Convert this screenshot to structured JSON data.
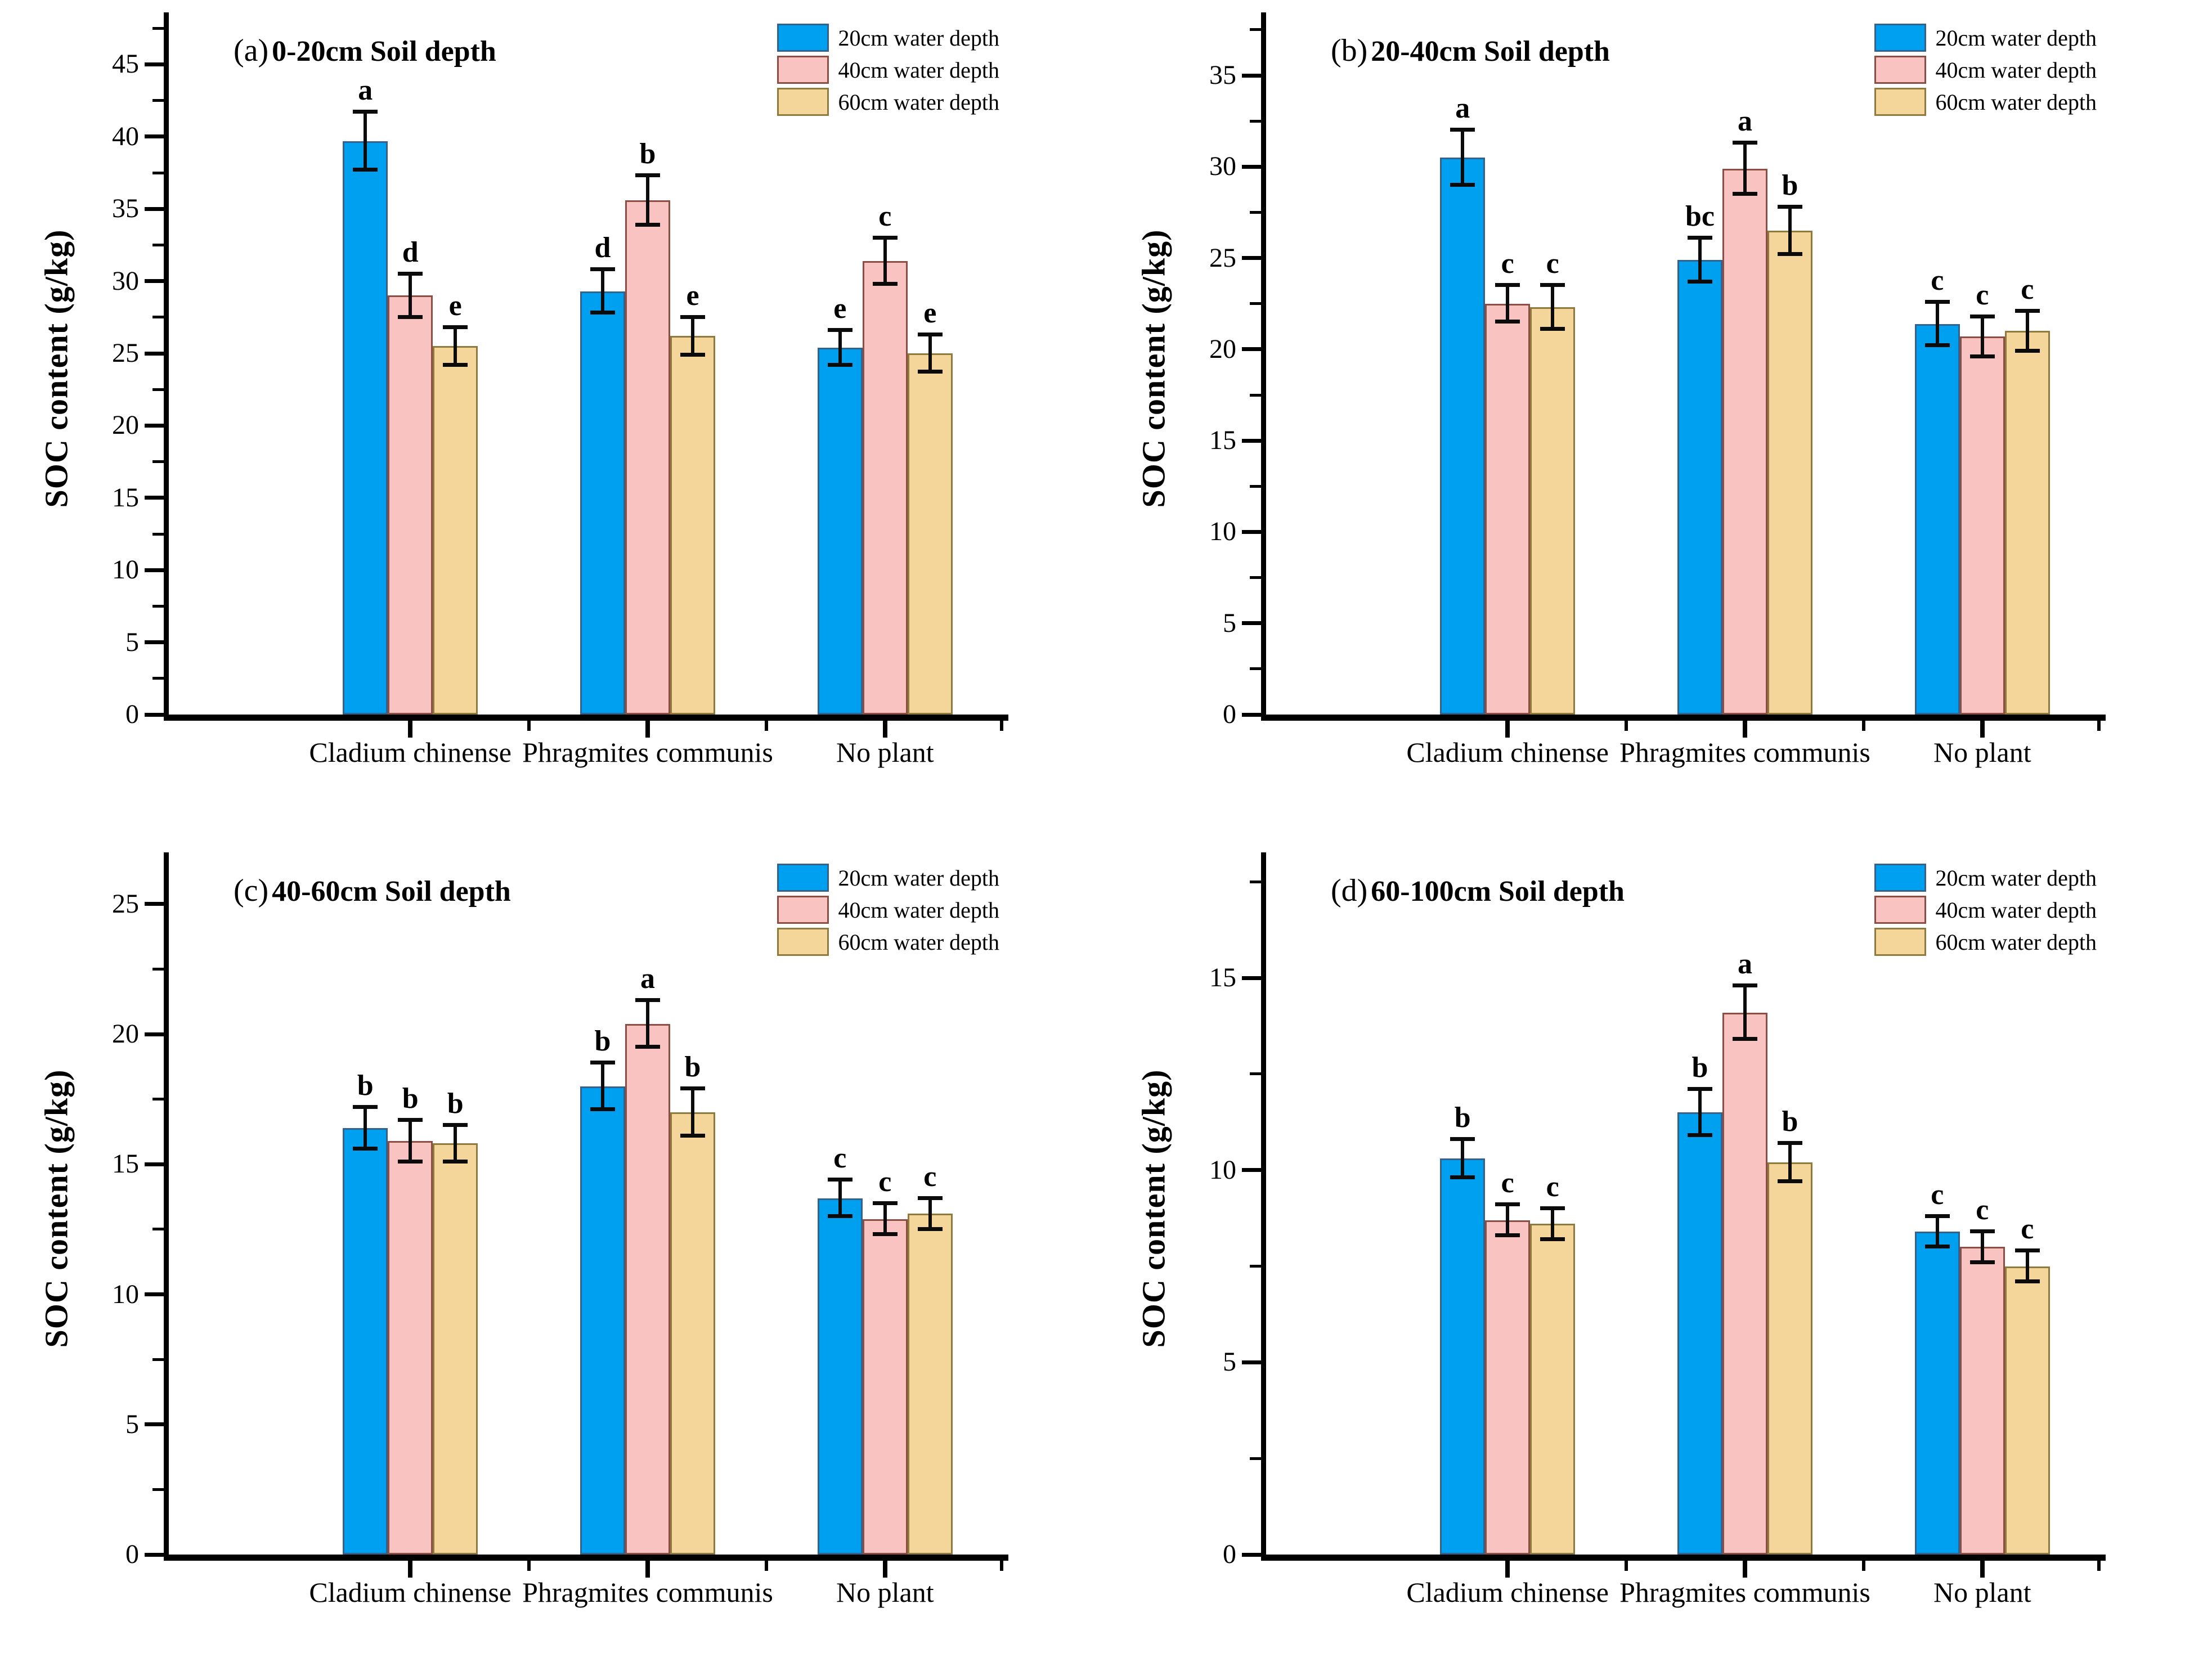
{
  "figure": {
    "description": "Four-panel grouped bar chart of soil organic carbon content by plant type, water depth and soil depth",
    "colors": {
      "series_20cm_fill": "#00A0F0",
      "series_20cm_border": "#33638C",
      "series_40cm_fill": "#F9C3C2",
      "series_40cm_border": "#8C4D45",
      "series_60cm_fill": "#F5D69A",
      "series_60cm_border": "#8F7A3E",
      "axis": "#000000"
    }
  },
  "chart_data": [
    {
      "id": "a",
      "type": "bar",
      "tag": "(a)",
      "title": "0-20cm Soil depth",
      "ylabel": "SOC content (g/kg)",
      "categories": [
        "Cladium chinense",
        "Phragmites communis",
        "No plant"
      ],
      "yticks": [
        0,
        5,
        10,
        15,
        20,
        25,
        30,
        35,
        40,
        45
      ],
      "ylim": [
        0,
        47.9
      ],
      "legend_position": "top-right",
      "grid": false,
      "series": [
        {
          "name": "20cm water depth",
          "fill": "#00A0F0",
          "border": "#33638C",
          "values": [
            39.7,
            29.3,
            25.4
          ],
          "errors": [
            2.0,
            1.5,
            1.2
          ],
          "letters": [
            "a",
            "d",
            "e"
          ]
        },
        {
          "name": "40cm water depth",
          "fill": "#F9C3C2",
          "border": "#8C4D45",
          "values": [
            29.0,
            35.6,
            31.4
          ],
          "errors": [
            1.5,
            1.7,
            1.6
          ],
          "letters": [
            "d",
            "b",
            "c"
          ]
        },
        {
          "name": "60cm water depth",
          "fill": "#F5D69A",
          "border": "#8F7A3E",
          "values": [
            25.5,
            26.2,
            25.0
          ],
          "errors": [
            1.3,
            1.3,
            1.3
          ],
          "letters": [
            "e",
            "e",
            "e"
          ]
        }
      ]
    },
    {
      "id": "b",
      "type": "bar",
      "tag": "(b)",
      "title": "20-40cm Soil depth",
      "ylabel": "SOC content (g/kg)",
      "categories": [
        "Cladium chinense",
        "Phragmites communis",
        "No plant"
      ],
      "yticks": [
        0,
        5,
        10,
        15,
        20,
        25,
        30,
        35
      ],
      "ylim": [
        0,
        37.9
      ],
      "legend_position": "top-right",
      "grid": false,
      "series": [
        {
          "name": "20cm water depth",
          "fill": "#00A0F0",
          "border": "#33638C",
          "values": [
            30.5,
            24.9,
            21.4
          ],
          "errors": [
            1.5,
            1.2,
            1.2
          ],
          "letters": [
            "a",
            "bc",
            "c"
          ]
        },
        {
          "name": "40cm water depth",
          "fill": "#F9C3C2",
          "border": "#8C4D45",
          "values": [
            22.5,
            29.9,
            20.7
          ],
          "errors": [
            1.0,
            1.4,
            1.1
          ],
          "letters": [
            "c",
            "a",
            "c"
          ]
        },
        {
          "name": "60cm water depth",
          "fill": "#F5D69A",
          "border": "#8F7A3E",
          "values": [
            22.3,
            26.5,
            21.0
          ],
          "errors": [
            1.2,
            1.3,
            1.1
          ],
          "letters": [
            "c",
            "b",
            "c"
          ]
        }
      ]
    },
    {
      "id": "c",
      "type": "bar",
      "tag": "(c)",
      "title": "40-60cm Soil depth",
      "ylabel": "SOC content (g/kg)",
      "categories": [
        "Cladium chinense",
        "Phragmites communis",
        "No plant"
      ],
      "yticks": [
        0,
        5,
        10,
        15,
        20,
        25
      ],
      "ylim": [
        0,
        26.6
      ],
      "legend_position": "top-right",
      "grid": false,
      "series": [
        {
          "name": "20cm water depth",
          "fill": "#00A0F0",
          "border": "#33638C",
          "values": [
            16.4,
            18.0,
            13.7
          ],
          "errors": [
            0.8,
            0.9,
            0.7
          ],
          "letters": [
            "b",
            "b",
            "c"
          ]
        },
        {
          "name": "40cm water depth",
          "fill": "#F9C3C2",
          "border": "#8C4D45",
          "values": [
            15.9,
            20.4,
            12.9
          ],
          "errors": [
            0.8,
            0.9,
            0.6
          ],
          "letters": [
            "b",
            "a",
            "c"
          ]
        },
        {
          "name": "60cm water depth",
          "fill": "#F5D69A",
          "border": "#8F7A3E",
          "values": [
            15.8,
            17.0,
            13.1
          ],
          "errors": [
            0.7,
            0.9,
            0.6
          ],
          "letters": [
            "b",
            "b",
            "c"
          ]
        }
      ]
    },
    {
      "id": "d",
      "type": "bar",
      "tag": "(d)",
      "title": "60-100cm Soil depth",
      "ylabel": "SOC content (g/kg)",
      "categories": [
        "Cladium chinense",
        "Phragmites communis",
        "No plant"
      ],
      "yticks": [
        0,
        5,
        10,
        15
      ],
      "ylim": [
        0,
        18.0
      ],
      "legend_position": "top-right",
      "grid": false,
      "series": [
        {
          "name": "20cm water depth",
          "fill": "#00A0F0",
          "border": "#33638C",
          "values": [
            10.3,
            11.5,
            8.4
          ],
          "errors": [
            0.5,
            0.6,
            0.4
          ],
          "letters": [
            "b",
            "b",
            "c"
          ]
        },
        {
          "name": "40cm water depth",
          "fill": "#F9C3C2",
          "border": "#8C4D45",
          "values": [
            8.7,
            14.1,
            8.0
          ],
          "errors": [
            0.4,
            0.7,
            0.4
          ],
          "letters": [
            "c",
            "a",
            "c"
          ]
        },
        {
          "name": "60cm water depth",
          "fill": "#F5D69A",
          "border": "#8F7A3E",
          "values": [
            8.6,
            10.2,
            7.5
          ],
          "errors": [
            0.4,
            0.5,
            0.4
          ],
          "letters": [
            "c",
            "b",
            "c"
          ]
        }
      ]
    }
  ]
}
